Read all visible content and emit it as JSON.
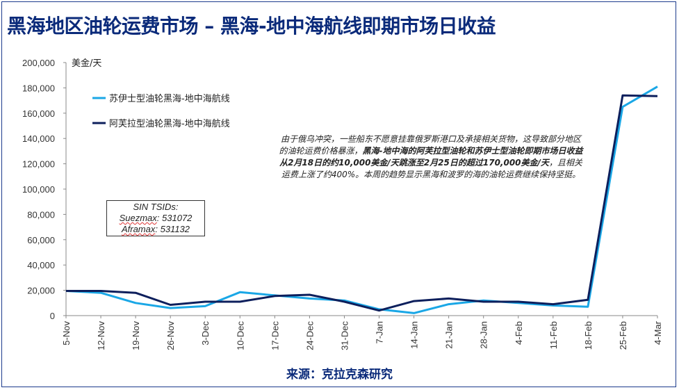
{
  "title": "黑海地区油轮运费市场 – 黑海-地中海航线即期市场日收益",
  "source": "来源：克拉克森研究",
  "annotation": {
    "part1": "由于俄乌冲突，一些船东不愿意挂靠俄罗斯港口及承接相关货物，这导致部分地区的油轮运费价格暴涨，",
    "bold": "黑海-地中海的阿芙拉型油轮和苏伊士型油轮即期市场日收益从2月18日的约10,000美金/天跳涨至2月25日的超过170,000美金/天",
    "part2": "，且相关运费上涨了约400%。本周的趋势显示黑海和波罗的海的油轮运费继续保持坚挺。"
  },
  "tsid_box": {
    "line1": "SIN TSIDs:",
    "line2_label": "Suezmax",
    "line2_value": ": 531072",
    "line3_label": "Aframax",
    "line3_value": ": 531132"
  },
  "colors": {
    "suezmax": "#1aa7e6",
    "aframax": "#0d1f5c",
    "title": "#0a2a7a"
  },
  "chart_data": {
    "type": "line",
    "ylabel": "美金/天",
    "ylim": [
      0,
      200000
    ],
    "yticks": [
      0,
      20000,
      40000,
      60000,
      80000,
      100000,
      120000,
      140000,
      160000,
      180000,
      200000
    ],
    "ytick_labels": [
      "0",
      "20,000",
      "40,000",
      "60,000",
      "80,000",
      "100,000",
      "120,000",
      "140,000",
      "160,000",
      "180,000",
      "200,000"
    ],
    "x": [
      "5-Nov",
      "12-Nov",
      "19-Nov",
      "26-Nov",
      "3-Dec",
      "10-Dec",
      "17-Dec",
      "24-Dec",
      "31-Dec",
      "7-Jan",
      "14-Jan",
      "21-Jan",
      "28-Jan",
      "4-Feb",
      "11-Feb",
      "18-Feb",
      "25-Feb",
      "4-Mar"
    ],
    "legend_position": "top-left",
    "series": [
      {
        "name": "苏伊士型油轮黑海-地中海航线",
        "color": "#1aa7e6",
        "values": [
          19500,
          18000,
          10000,
          6000,
          7500,
          18500,
          16000,
          13500,
          12000,
          5000,
          2000,
          9000,
          12000,
          10000,
          8000,
          7000,
          165000,
          181000
        ]
      },
      {
        "name": "阿芙拉型油轮黑海-地中海航线",
        "color": "#0d1f5c",
        "values": [
          19500,
          19500,
          18000,
          8500,
          11000,
          11000,
          15500,
          16500,
          11000,
          4000,
          11500,
          13500,
          11000,
          11000,
          9000,
          12500,
          174000,
          173500
        ]
      }
    ]
  }
}
